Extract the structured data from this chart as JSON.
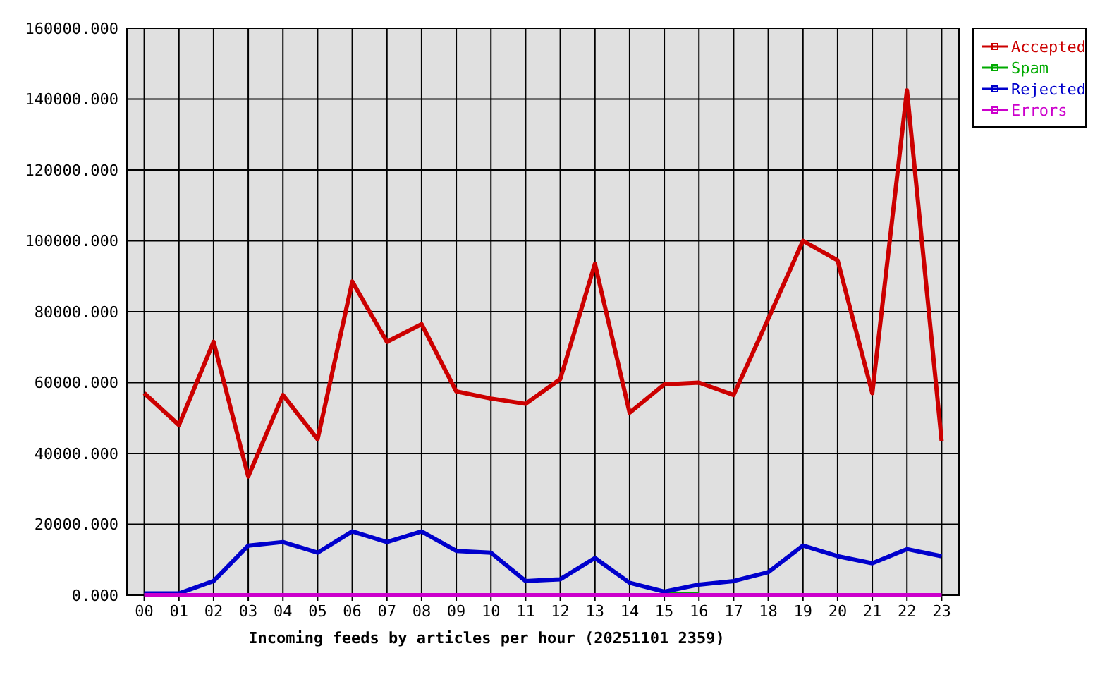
{
  "chart_data": {
    "type": "line",
    "xlabel": "Incoming feeds by articles per hour (20251101 2359)",
    "categories": [
      "00",
      "01",
      "02",
      "03",
      "04",
      "05",
      "06",
      "07",
      "08",
      "09",
      "10",
      "11",
      "12",
      "13",
      "14",
      "15",
      "16",
      "17",
      "18",
      "19",
      "20",
      "21",
      "22",
      "23"
    ],
    "series": [
      {
        "name": "Accepted",
        "color": "#cc0000",
        "values": [
          57000,
          48000,
          71500,
          33500,
          56500,
          44000,
          88500,
          71500,
          76500,
          57500,
          55500,
          54000,
          61000,
          93500,
          51500,
          59500,
          60000,
          56500,
          78000,
          100000,
          94500,
          57000,
          142500,
          43500
        ]
      },
      {
        "name": "Spam",
        "color": "#00aa00",
        "values": [
          null,
          null,
          null,
          null,
          null,
          null,
          null,
          null,
          null,
          null,
          null,
          null,
          null,
          null,
          null,
          400,
          400,
          null,
          null,
          null,
          null,
          null,
          null,
          null
        ]
      },
      {
        "name": "Rejected",
        "color": "#0000cc",
        "values": [
          500,
          500,
          4000,
          14000,
          15000,
          12000,
          18000,
          15000,
          18000,
          12500,
          12000,
          4000,
          4500,
          10500,
          3500,
          1000,
          3000,
          4000,
          6500,
          14000,
          11000,
          9000,
          13000,
          11000
        ]
      },
      {
        "name": "Errors",
        "color": "#cc00cc",
        "values": [
          0,
          0,
          0,
          0,
          0,
          0,
          0,
          0,
          0,
          0,
          0,
          0,
          0,
          0,
          0,
          0,
          0,
          0,
          0,
          0,
          0,
          0,
          0,
          0
        ]
      }
    ],
    "ylim": [
      0,
      160000
    ],
    "yticks": [
      {
        "value": 0,
        "label": "0.000"
      },
      {
        "value": 20000,
        "label": "20000.000"
      },
      {
        "value": 40000,
        "label": "40000.000"
      },
      {
        "value": 60000,
        "label": "60000.000"
      },
      {
        "value": 80000,
        "label": "80000.000"
      },
      {
        "value": 100000,
        "label": "100000.000"
      },
      {
        "value": 120000,
        "label": "120000.000"
      },
      {
        "value": 140000,
        "label": "140000.000"
      },
      {
        "value": 160000,
        "label": "160000.000"
      }
    ],
    "grid": true,
    "legend": "right",
    "line_style": "solid"
  }
}
